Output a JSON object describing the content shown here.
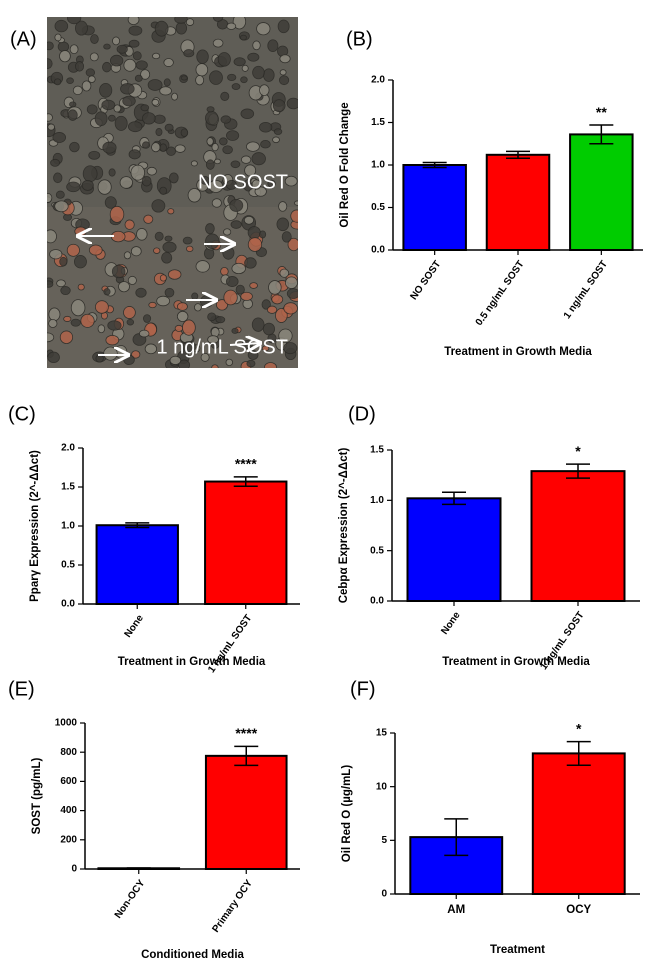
{
  "photo": {
    "panel": "(A)",
    "labels": [
      "NO SOST",
      "1 ng/mL SOST"
    ]
  },
  "chart_data": [
    {
      "type": "bar",
      "panel": "(B)",
      "y_label": "Oil Red O Fold Change",
      "x_label": "Treatment in Growth Media",
      "categories": [
        "NO SOST",
        "0.5 ng/mL SOST",
        "1 ng/mL SOST"
      ],
      "values": [
        1.0,
        1.12,
        1.36
      ],
      "errors": [
        0.03,
        0.04,
        0.11
      ],
      "colors": [
        "#0000ff",
        "#ff0000",
        "#00cc00"
      ],
      "ylim": [
        0,
        2.0
      ],
      "yticks": [
        {
          "value": 0,
          "label": "0.0"
        },
        0.5,
        {
          "value": 1.0,
          "label": "1.0"
        },
        1.5,
        {
          "value": 2.0,
          "label": "2.0"
        }
      ],
      "annotations": [
        {
          "text": "**",
          "x": "1 ng/mL SOST"
        }
      ]
    },
    {
      "type": "bar",
      "panel": "(C)",
      "y_label": "Pparγ Expression (2^-ΔΔct)",
      "x_label": "Treatment in Growth Media",
      "categories": [
        "None",
        "1 ng/mL SOST"
      ],
      "values": [
        1.01,
        1.57
      ],
      "errors": [
        0.03,
        0.06
      ],
      "colors": [
        "#0000ff",
        "#ff0000"
      ],
      "ylim": [
        0,
        2.0
      ],
      "yticks": [
        {
          "value": 0,
          "label": "0.0"
        },
        0.5,
        {
          "value": 1.0,
          "label": "1.0"
        },
        1.5,
        {
          "value": 2.0,
          "label": "2.0"
        }
      ],
      "annotations": [
        {
          "text": "****",
          "x": "1 ng/mL SOST"
        }
      ]
    },
    {
      "type": "bar",
      "panel": "(D)",
      "y_label": "Cebpα Expression (2^-ΔΔct)",
      "x_label": "Treatment in Growth Media",
      "categories": [
        "None",
        "1 ng/mL SOST"
      ],
      "values": [
        1.02,
        1.29
      ],
      "errors": [
        0.06,
        0.07
      ],
      "colors": [
        "#0000ff",
        "#ff0000"
      ],
      "ylim": [
        0,
        1.5
      ],
      "yticks": [
        {
          "value": 0,
          "label": "0.0"
        },
        0.5,
        {
          "value": 1.0,
          "label": "1.0"
        },
        1.5
      ],
      "annotations": [
        {
          "text": "*",
          "x": "1 ng/mL SOST"
        }
      ]
    },
    {
      "type": "bar",
      "panel": "(E)",
      "y_label": "SOST (pg/mL)",
      "x_label": "Conditioned Media",
      "categories": [
        "Non-OCY",
        "Primary OCY"
      ],
      "values": [
        5,
        775
      ],
      "errors": [
        2,
        65
      ],
      "colors": [
        "#0000ff",
        "#ff0000"
      ],
      "ylim": [
        0,
        1000
      ],
      "yticks": [
        0,
        200,
        400,
        600,
        800,
        1000
      ],
      "annotations": [
        {
          "text": "****",
          "x": "Primary OCY"
        }
      ]
    },
    {
      "type": "bar",
      "panel": "(F)",
      "y_label": "Oil Red O (µg/mL)",
      "x_label": "Treatment",
      "categories": [
        "AM",
        "OCY"
      ],
      "values": [
        5.3,
        13.1
      ],
      "errors": [
        1.7,
        1.1
      ],
      "colors": [
        "#0000ff",
        "#ff0000"
      ],
      "ylim": [
        0,
        15
      ],
      "yticks": [
        0,
        5,
        10,
        15
      ],
      "annotations": [
        {
          "text": "*",
          "x": "OCY"
        }
      ]
    }
  ]
}
